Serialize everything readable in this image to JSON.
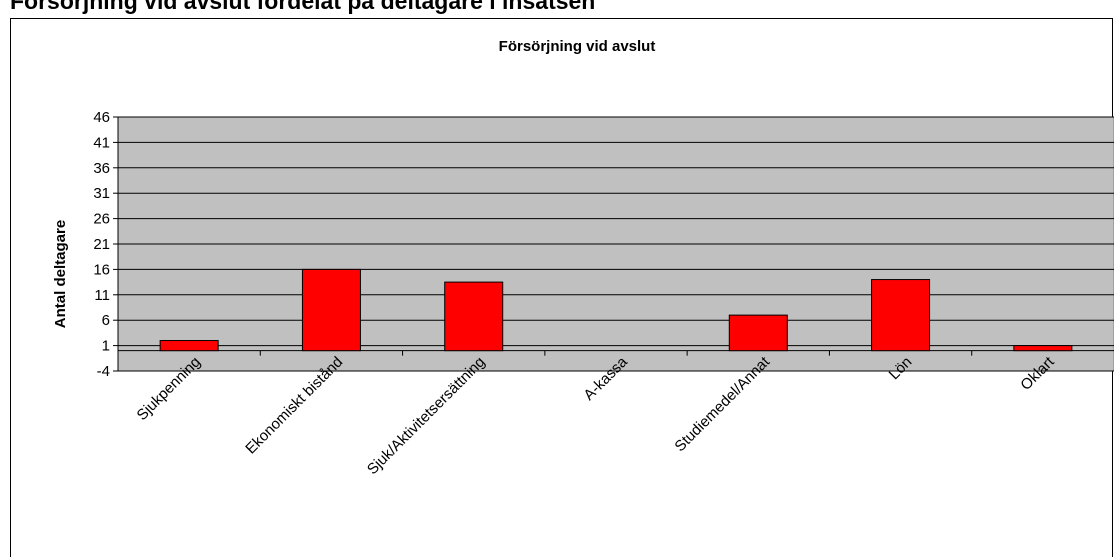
{
  "page": {
    "partial_heading": "Försörjning vid avslut fördelat på deltagare i insatsen"
  },
  "chart_data": {
    "type": "bar",
    "title": "Försörjning vid avslut",
    "xlabel": "",
    "ylabel": "Antal deltagare",
    "categories": [
      "Sjukpenning",
      "Ekonomiskt bistånd",
      "Sjuk/Aktivitetsersättning",
      "A-kassa",
      "Studiemedel/Annat",
      "Lön",
      "Oklart"
    ],
    "values": [
      2,
      16,
      13.5,
      0,
      7,
      14,
      1
    ],
    "ylim": [
      -4,
      46
    ],
    "yticks": [
      -4,
      1,
      6,
      11,
      16,
      21,
      26,
      31,
      36,
      41,
      46
    ],
    "grid": true,
    "legend": "none",
    "colors": {
      "bar_fill": "#ff0000",
      "bar_stroke": "#000000",
      "plot_background": "#c0c0c0",
      "gridline": "#000000"
    }
  }
}
